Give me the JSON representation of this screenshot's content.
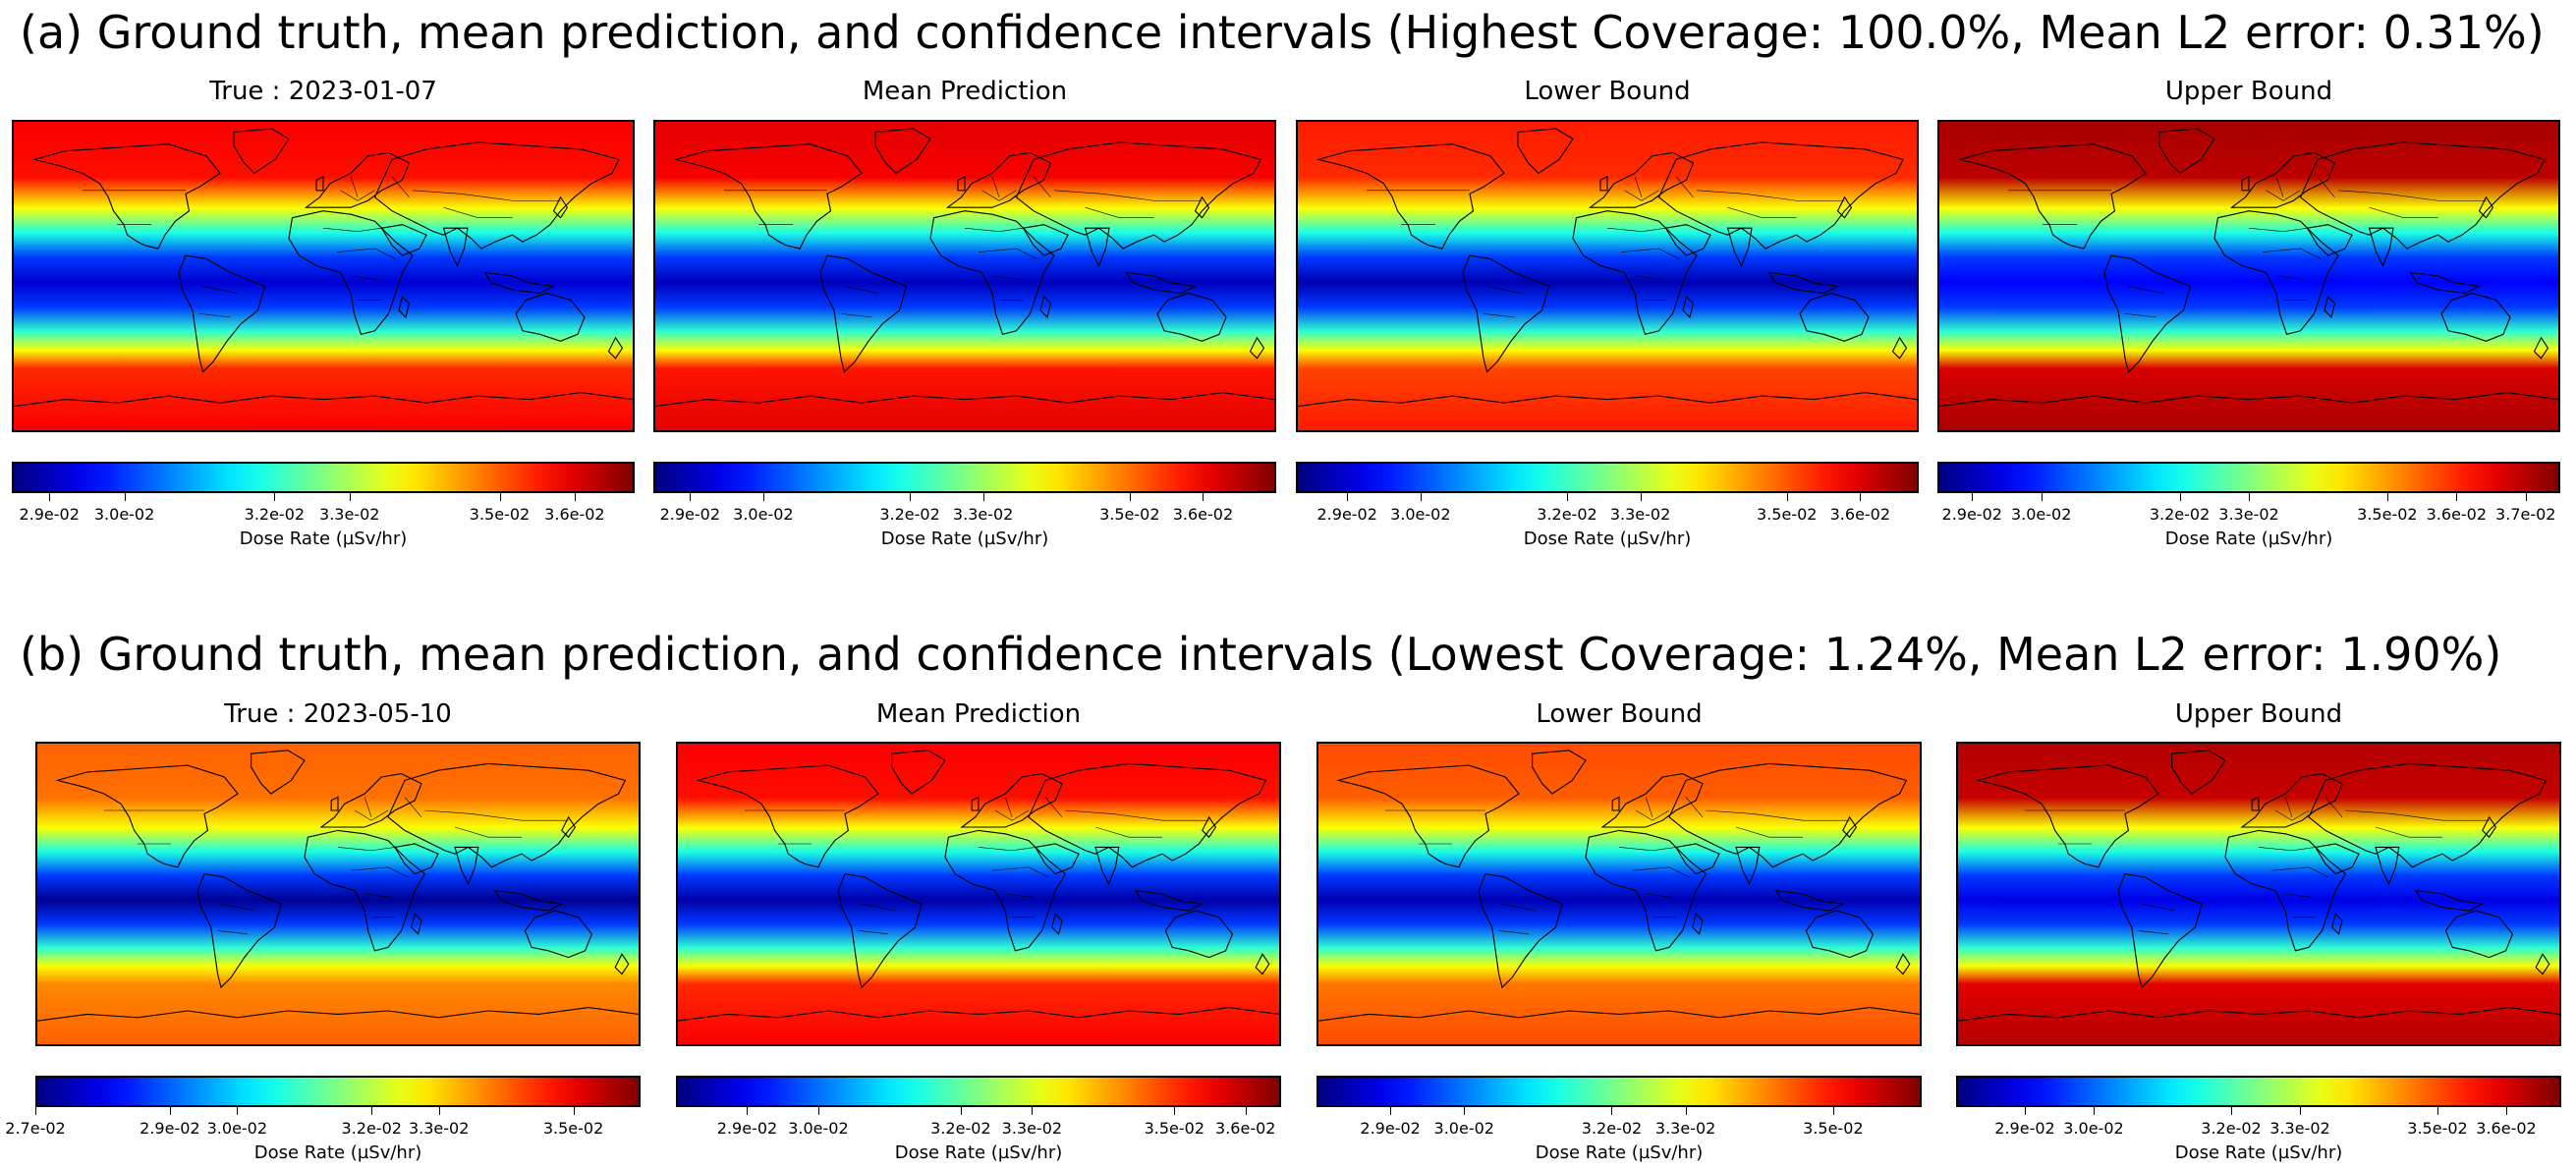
{
  "rows": [
    {
      "title": "(a) Ground truth, mean prediction, and confidence intervals (Highest Coverage: 100.0%, Mean L2 error: 0.31%)",
      "panels": [
        {
          "title": "True : 2023-01-07",
          "cbar_label": "Dose Rate (µSv/hr)",
          "vmin": 0.0285,
          "vmax": 0.0368,
          "ticks": [
            {
              "v": 0.029,
              "label": "2.9e-02"
            },
            {
              "v": 0.03,
              "label": "3.0e-02"
            },
            {
              "v": 0.032,
              "label": "3.2e-02"
            },
            {
              "v": 0.033,
              "label": "3.3e-02"
            },
            {
              "v": 0.035,
              "label": "3.5e-02"
            },
            {
              "v": 0.036,
              "label": "3.6e-02"
            }
          ],
          "low_level": 0.08,
          "high_level": 0.88
        },
        {
          "title": "Mean Prediction",
          "cbar_label": "Dose Rate (µSv/hr)",
          "vmin": 0.0285,
          "vmax": 0.037,
          "ticks": [
            {
              "v": 0.029,
              "label": "2.9e-02"
            },
            {
              "v": 0.03,
              "label": "3.0e-02"
            },
            {
              "v": 0.032,
              "label": "3.2e-02"
            },
            {
              "v": 0.033,
              "label": "3.3e-02"
            },
            {
              "v": 0.035,
              "label": "3.5e-02"
            },
            {
              "v": 0.036,
              "label": "3.6e-02"
            }
          ],
          "low_level": 0.06,
          "high_level": 0.9
        },
        {
          "title": "Lower Bound",
          "cbar_label": "Dose Rate (µSv/hr)",
          "vmin": 0.0283,
          "vmax": 0.0368,
          "ticks": [
            {
              "v": 0.029,
              "label": "2.9e-02"
            },
            {
              "v": 0.03,
              "label": "3.0e-02"
            },
            {
              "v": 0.032,
              "label": "3.2e-02"
            },
            {
              "v": 0.033,
              "label": "3.3e-02"
            },
            {
              "v": 0.035,
              "label": "3.5e-02"
            },
            {
              "v": 0.036,
              "label": "3.6e-02"
            }
          ],
          "low_level": 0.05,
          "high_level": 0.85
        },
        {
          "title": "Upper Bound",
          "cbar_label": "Dose Rate (µSv/hr)",
          "vmin": 0.0285,
          "vmax": 0.0375,
          "ticks": [
            {
              "v": 0.029,
              "label": "2.9e-02"
            },
            {
              "v": 0.03,
              "label": "3.0e-02"
            },
            {
              "v": 0.032,
              "label": "3.2e-02"
            },
            {
              "v": 0.033,
              "label": "3.3e-02"
            },
            {
              "v": 0.035,
              "label": "3.5e-02"
            },
            {
              "v": 0.036,
              "label": "3.6e-02"
            },
            {
              "v": 0.037,
              "label": "3.7e-02"
            }
          ],
          "low_level": 0.12,
          "high_level": 0.96
        }
      ]
    },
    {
      "title": "(b) Ground truth, mean prediction, and confidence intervals (Lowest Coverage: 1.24%, Mean L2 error: 1.90%)",
      "panels": [
        {
          "title": "True : 2023-05-10",
          "cbar_label": "Dose Rate (µSv/hr)",
          "vmin": 0.027,
          "vmax": 0.036,
          "ticks": [
            {
              "v": 0.027,
              "label": "2.7e-02"
            },
            {
              "v": 0.029,
              "label": "2.9e-02"
            },
            {
              "v": 0.03,
              "label": "3.0e-02"
            },
            {
              "v": 0.032,
              "label": "3.2e-02"
            },
            {
              "v": 0.033,
              "label": "3.3e-02"
            },
            {
              "v": 0.035,
              "label": "3.5e-02"
            }
          ],
          "low_level": 0.02,
          "high_level": 0.78
        },
        {
          "title": "Mean Prediction",
          "cbar_label": "Dose Rate (µSv/hr)",
          "vmin": 0.028,
          "vmax": 0.0365,
          "ticks": [
            {
              "v": 0.029,
              "label": "2.9e-02"
            },
            {
              "v": 0.03,
              "label": "3.0e-02"
            },
            {
              "v": 0.032,
              "label": "3.2e-02"
            },
            {
              "v": 0.033,
              "label": "3.3e-02"
            },
            {
              "v": 0.035,
              "label": "3.5e-02"
            },
            {
              "v": 0.036,
              "label": "3.6e-02"
            }
          ],
          "low_level": 0.04,
          "high_level": 0.88
        },
        {
          "title": "Lower Bound",
          "cbar_label": "Dose Rate (µSv/hr)",
          "vmin": 0.028,
          "vmax": 0.0362,
          "ticks": [
            {
              "v": 0.029,
              "label": "2.9e-02"
            },
            {
              "v": 0.03,
              "label": "3.0e-02"
            },
            {
              "v": 0.032,
              "label": "3.2e-02"
            },
            {
              "v": 0.033,
              "label": "3.3e-02"
            },
            {
              "v": 0.035,
              "label": "3.5e-02"
            }
          ],
          "low_level": 0.05,
          "high_level": 0.8
        },
        {
          "title": "Upper Bound",
          "cbar_label": "Dose Rate (µSv/hr)",
          "vmin": 0.028,
          "vmax": 0.0368,
          "ticks": [
            {
              "v": 0.029,
              "label": "2.9e-02"
            },
            {
              "v": 0.03,
              "label": "3.0e-02"
            },
            {
              "v": 0.032,
              "label": "3.2e-02"
            },
            {
              "v": 0.033,
              "label": "3.3e-02"
            },
            {
              "v": 0.035,
              "label": "3.5e-02"
            },
            {
              "v": 0.036,
              "label": "3.6e-02"
            }
          ],
          "low_level": 0.1,
          "high_level": 0.95
        }
      ]
    }
  ],
  "chart_data": {
    "type": "heatmap",
    "colormap": "jet",
    "description_series": [
      {
        "name": "True : 2023-01-07",
        "colorbar_range": [
          0.0285,
          0.0368
        ]
      },
      {
        "name": "Mean Prediction",
        "colorbar_range": [
          0.0285,
          0.037
        ]
      },
      {
        "name": "Lower Bound",
        "colorbar_range": [
          0.0283,
          0.0368
        ]
      },
      {
        "name": "Upper Bound",
        "colorbar_range": [
          0.0285,
          0.0375
        ]
      },
      {
        "name": "True : 2023-05-10",
        "colorbar_range": [
          0.027,
          0.036
        ]
      },
      {
        "name": "Mean Prediction",
        "colorbar_range": [
          0.028,
          0.0365
        ]
      },
      {
        "name": "Lower Bound",
        "colorbar_range": [
          0.028,
          0.0362
        ]
      },
      {
        "name": "Upper Bound",
        "colorbar_range": [
          0.028,
          0.0368
        ]
      }
    ]
  }
}
